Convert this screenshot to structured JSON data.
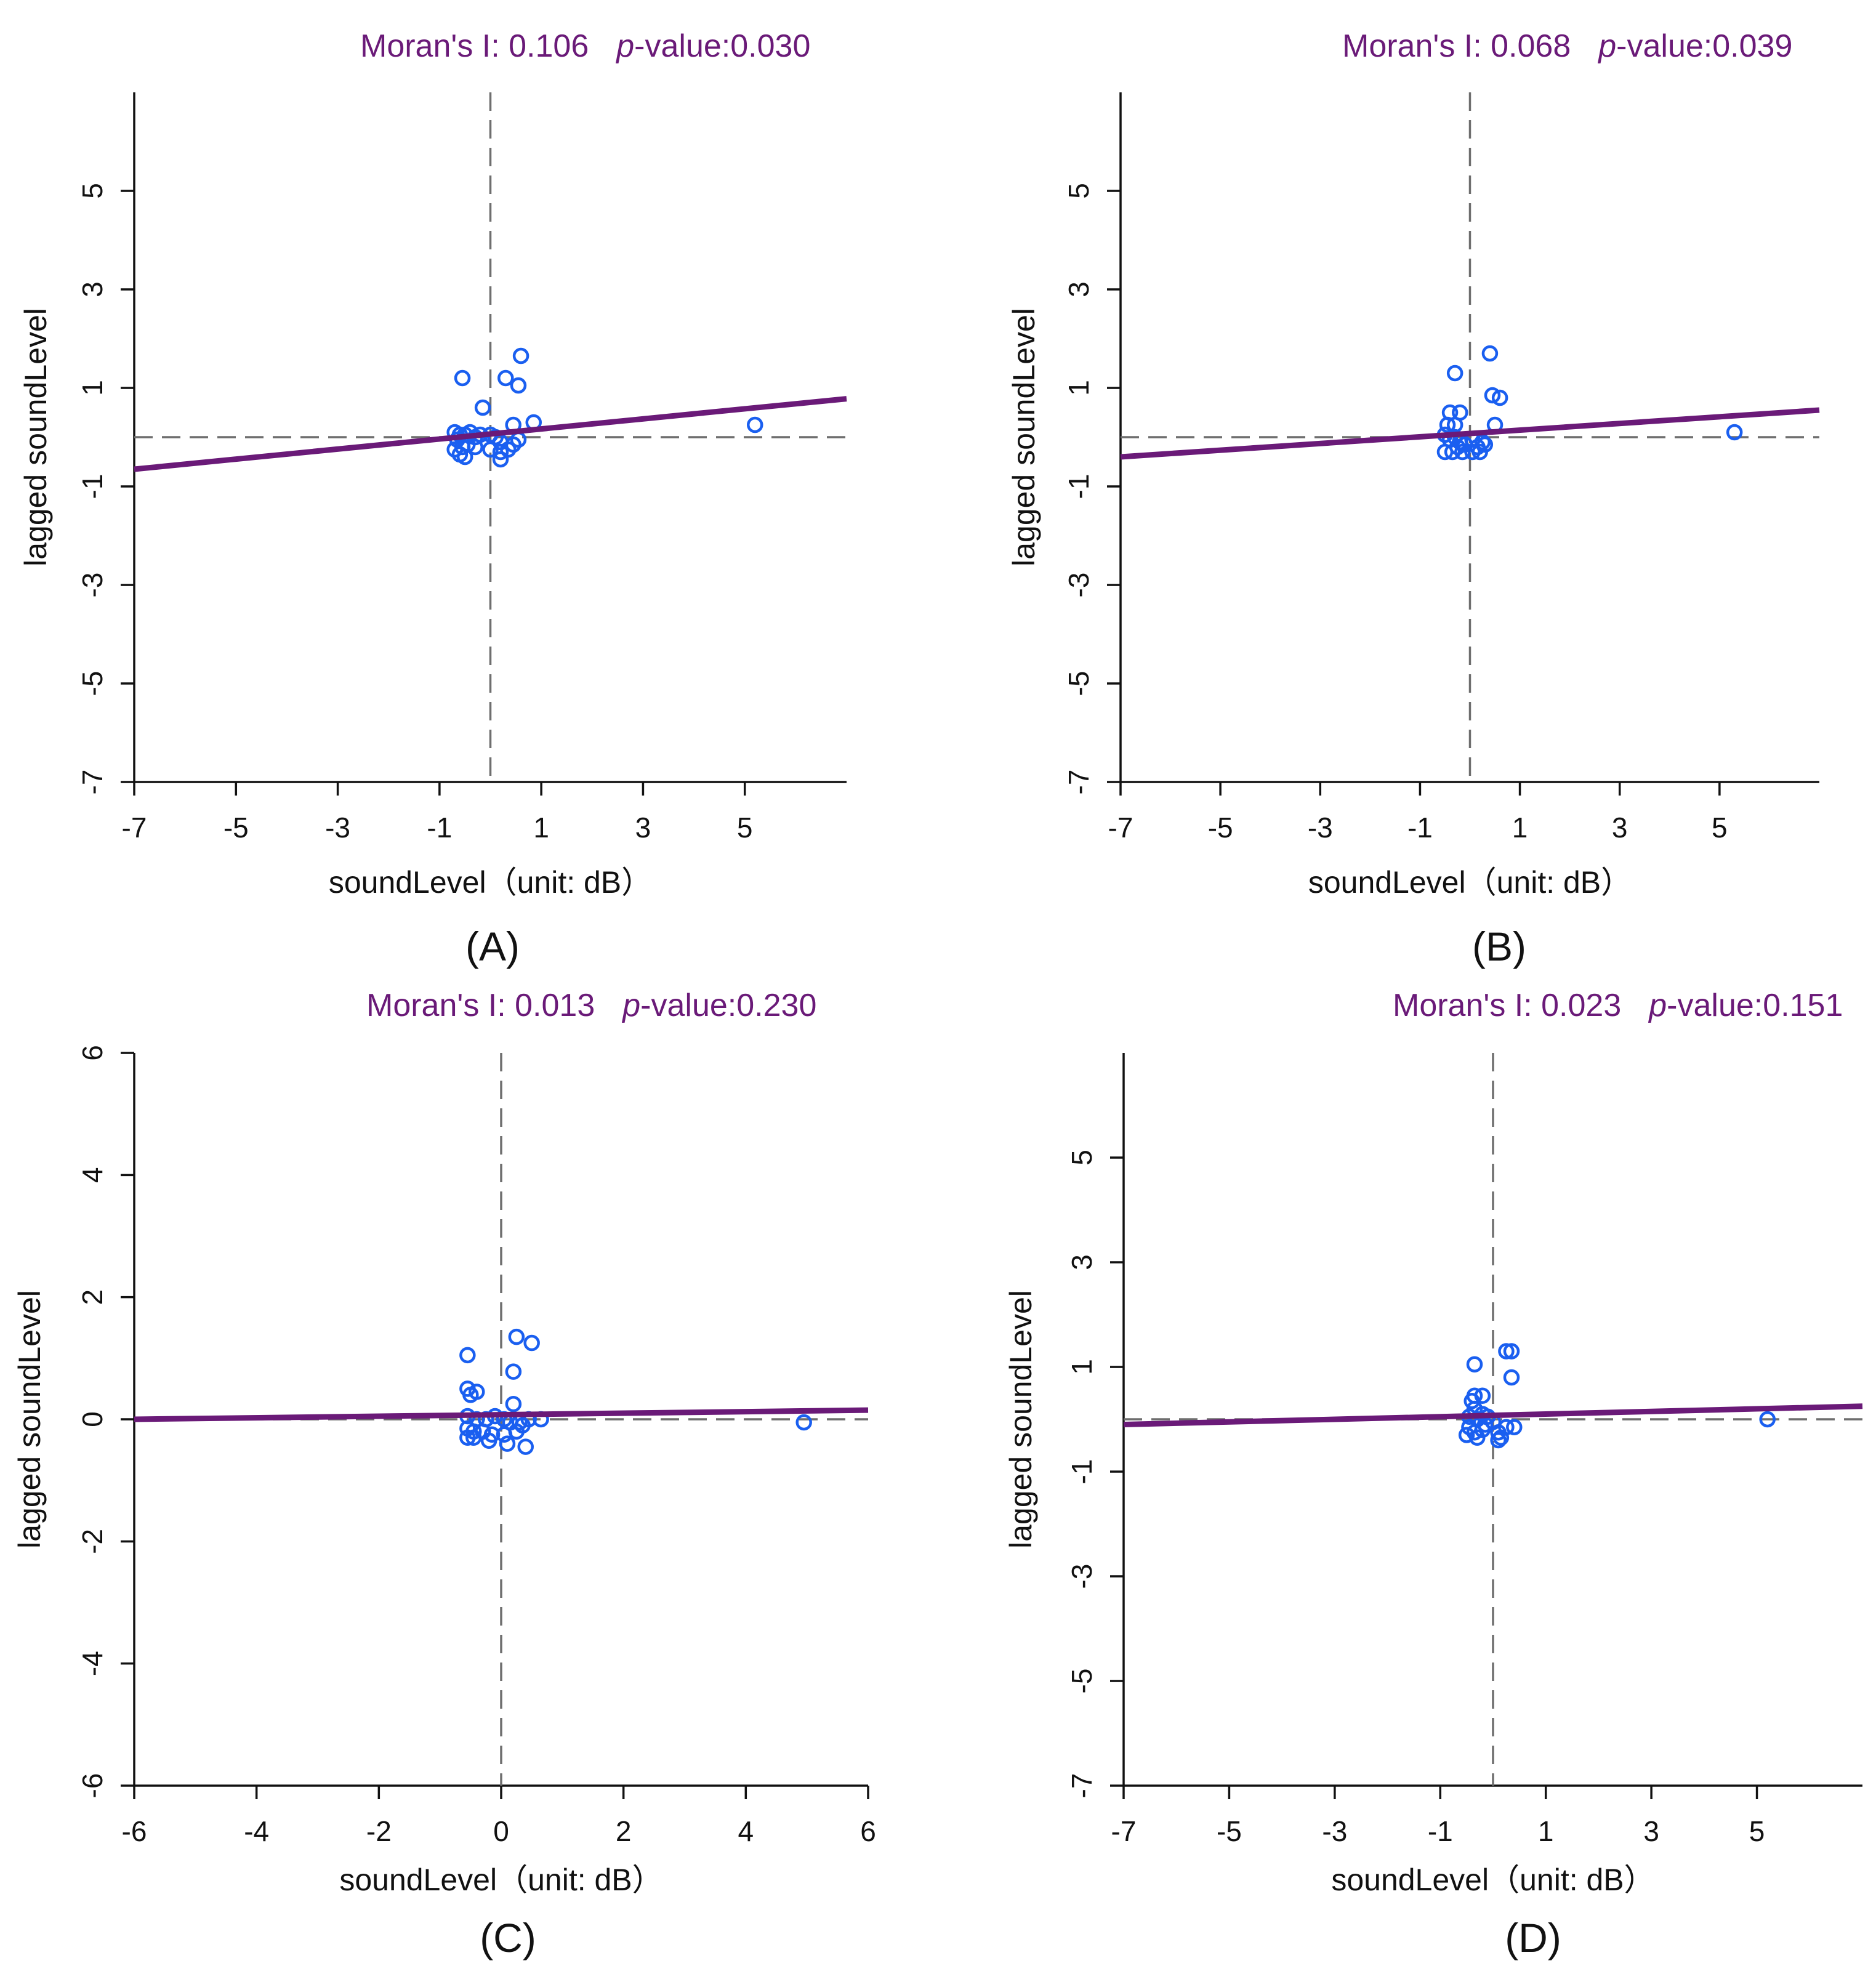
{
  "colors": {
    "fit_line": "#6a1a78",
    "points": "#1a5ff0",
    "reference": "#6e6e6e",
    "text": "#111111"
  },
  "chart_data": [
    {
      "type": "scatter",
      "panel_label": "(A)",
      "title": "",
      "stat": {
        "moran_label": "Moran's I: 0.106",
        "p_italic": "p",
        "p_rest": "-value:0.030"
      },
      "xlabel": "soundLevel（unit: dB）",
      "ylabel": "lagged soundLevel",
      "xlim": [
        -7,
        7
      ],
      "ylim": [
        -7,
        7
      ],
      "xticks": [
        -7,
        -5,
        -3,
        -1,
        1,
        3,
        5
      ],
      "yticks": [
        -7,
        -5,
        -3,
        -1,
        1,
        3,
        5
      ],
      "fit_line": {
        "x": [
          -7,
          7
        ],
        "y": [
          -0.65,
          0.78
        ]
      },
      "reference_lines": {
        "vertical_x": 0,
        "horizontal_y": 0
      },
      "points": [
        [
          -0.55,
          1.2
        ],
        [
          0.3,
          1.2
        ],
        [
          0.6,
          1.65
        ],
        [
          0.55,
          1.05
        ],
        [
          -0.15,
          0.6
        ],
        [
          0.45,
          0.25
        ],
        [
          0.85,
          0.3
        ],
        [
          5.2,
          0.25
        ],
        [
          -0.7,
          0.1
        ],
        [
          -0.6,
          0.05
        ],
        [
          -0.5,
          0.05
        ],
        [
          -0.4,
          0.1
        ],
        [
          -0.3,
          0.0
        ],
        [
          -0.2,
          0.05
        ],
        [
          0.0,
          0.05
        ],
        [
          0.1,
          0.0
        ],
        [
          0.2,
          -0.1
        ],
        [
          -0.65,
          -0.05
        ],
        [
          -0.55,
          -0.2
        ],
        [
          -0.45,
          -0.15
        ],
        [
          -0.3,
          -0.2
        ],
        [
          0.0,
          -0.25
        ],
        [
          0.2,
          -0.3
        ],
        [
          0.45,
          -0.15
        ],
        [
          0.35,
          -0.25
        ],
        [
          -0.6,
          -0.35
        ],
        [
          -0.5,
          -0.4
        ],
        [
          0.2,
          -0.45
        ],
        [
          -0.7,
          -0.25
        ],
        [
          0.55,
          -0.05
        ]
      ]
    },
    {
      "type": "scatter",
      "panel_label": "(B)",
      "title": "",
      "stat": {
        "moran_label": "Moran's I: 0.068",
        "p_italic": "p",
        "p_rest": "-value:0.039"
      },
      "xlabel": "soundLevel（unit: dB）",
      "ylabel": "lagged soundLevel",
      "xlim": [
        -7,
        7
      ],
      "ylim": [
        -7,
        7
      ],
      "xticks": [
        -7,
        -5,
        -3,
        -1,
        1,
        3,
        5
      ],
      "yticks": [
        -7,
        -5,
        -3,
        -1,
        1,
        3,
        5
      ],
      "fit_line": {
        "x": [
          -7,
          7
        ],
        "y": [
          -0.4,
          0.55
        ]
      },
      "reference_lines": {
        "vertical_x": 0,
        "horizontal_y": 0
      },
      "points": [
        [
          0.4,
          1.7
        ],
        [
          -0.3,
          1.3
        ],
        [
          0.45,
          0.85
        ],
        [
          0.6,
          0.8
        ],
        [
          0.5,
          0.25
        ],
        [
          -0.4,
          0.5
        ],
        [
          -0.2,
          0.5
        ],
        [
          -0.45,
          0.25
        ],
        [
          -0.3,
          0.25
        ],
        [
          5.3,
          0.1
        ],
        [
          -0.5,
          0.05
        ],
        [
          -0.4,
          -0.05
        ],
        [
          -0.3,
          0.0
        ],
        [
          -0.2,
          -0.1
        ],
        [
          -0.1,
          -0.15
        ],
        [
          0.05,
          -0.05
        ],
        [
          0.15,
          -0.2
        ],
        [
          0.25,
          -0.1
        ],
        [
          -0.5,
          -0.3
        ],
        [
          -0.35,
          -0.3
        ],
        [
          -0.15,
          -0.3
        ],
        [
          0.05,
          -0.3
        ],
        [
          0.2,
          -0.3
        ],
        [
          -0.25,
          -0.2
        ],
        [
          0.3,
          -0.15
        ]
      ]
    },
    {
      "type": "scatter",
      "panel_label": "(C)",
      "title": "",
      "stat": {
        "moran_label": "Moran's I: 0.013",
        "p_italic": "p",
        "p_rest": "-value:0.230"
      },
      "xlabel": "soundLevel（unit: dB）",
      "ylabel": "lagged soundLevel",
      "xlim": [
        -6,
        6
      ],
      "ylim": [
        -6,
        6
      ],
      "xticks": [
        -6,
        -4,
        -2,
        0,
        2,
        4,
        6
      ],
      "yticks": [
        -6,
        -4,
        -2,
        0,
        2,
        4,
        6
      ],
      "fit_line": {
        "x": [
          -6,
          6
        ],
        "y": [
          0.0,
          0.15
        ]
      },
      "reference_lines": {
        "vertical_x": 0,
        "horizontal_y": 0
      },
      "points": [
        [
          0.25,
          1.35
        ],
        [
          0.5,
          1.25
        ],
        [
          -0.55,
          1.05
        ],
        [
          0.2,
          0.78
        ],
        [
          -0.55,
          0.5
        ],
        [
          -0.4,
          0.45
        ],
        [
          -0.5,
          0.4
        ],
        [
          0.2,
          0.25
        ],
        [
          4.95,
          -0.05
        ],
        [
          -0.55,
          0.05
        ],
        [
          -0.4,
          0.0
        ],
        [
          -0.25,
          0.0
        ],
        [
          -0.1,
          0.05
        ],
        [
          0.05,
          0.0
        ],
        [
          0.15,
          -0.05
        ],
        [
          0.3,
          -0.05
        ],
        [
          0.45,
          0.0
        ],
        [
          0.65,
          0.0
        ],
        [
          -0.55,
          -0.15
        ],
        [
          -0.45,
          -0.2
        ],
        [
          -0.3,
          -0.2
        ],
        [
          -0.15,
          -0.25
        ],
        [
          0.05,
          -0.25
        ],
        [
          0.25,
          -0.2
        ],
        [
          -0.55,
          -0.3
        ],
        [
          -0.45,
          -0.3
        ],
        [
          -0.2,
          -0.35
        ],
        [
          0.1,
          -0.4
        ],
        [
          0.4,
          -0.45
        ],
        [
          0.35,
          -0.1
        ]
      ]
    },
    {
      "type": "scatter",
      "panel_label": "(D)",
      "title": "",
      "stat": {
        "moran_label": "Moran's I: 0.023",
        "p_italic": "p",
        "p_rest": "-value:0.151"
      },
      "xlabel": "soundLevel（unit: dB）",
      "ylabel": "lagged soundLevel",
      "xlim": [
        -7,
        7
      ],
      "ylim": [
        -7,
        7
      ],
      "xticks": [
        -7,
        -5,
        -3,
        -1,
        1,
        3,
        5
      ],
      "yticks": [
        -7,
        -5,
        -3,
        -1,
        1,
        3,
        5
      ],
      "fit_line": {
        "x": [
          -7,
          7
        ],
        "y": [
          -0.1,
          0.25
        ]
      },
      "reference_lines": {
        "vertical_x": 0,
        "horizontal_y": 0
      },
      "points": [
        [
          0.25,
          1.3
        ],
        [
          0.35,
          1.3
        ],
        [
          -0.35,
          1.05
        ],
        [
          0.35,
          0.8
        ],
        [
          -0.35,
          0.45
        ],
        [
          -0.2,
          0.45
        ],
        [
          -0.4,
          0.35
        ],
        [
          -0.35,
          0.2
        ],
        [
          -0.45,
          0.05
        ],
        [
          -0.3,
          0.0
        ],
        [
          -0.2,
          0.1
        ],
        [
          -0.1,
          0.05
        ],
        [
          0.0,
          -0.05
        ],
        [
          -0.45,
          -0.15
        ],
        [
          -0.35,
          -0.25
        ],
        [
          -0.2,
          -0.2
        ],
        [
          0.1,
          -0.25
        ],
        [
          0.25,
          -0.15
        ],
        [
          0.4,
          -0.15
        ],
        [
          -0.5,
          -0.3
        ],
        [
          -0.3,
          -0.35
        ],
        [
          0.1,
          -0.4
        ],
        [
          0.15,
          -0.35
        ],
        [
          5.2,
          0.0
        ],
        [
          -0.15,
          -0.1
        ]
      ]
    }
  ]
}
